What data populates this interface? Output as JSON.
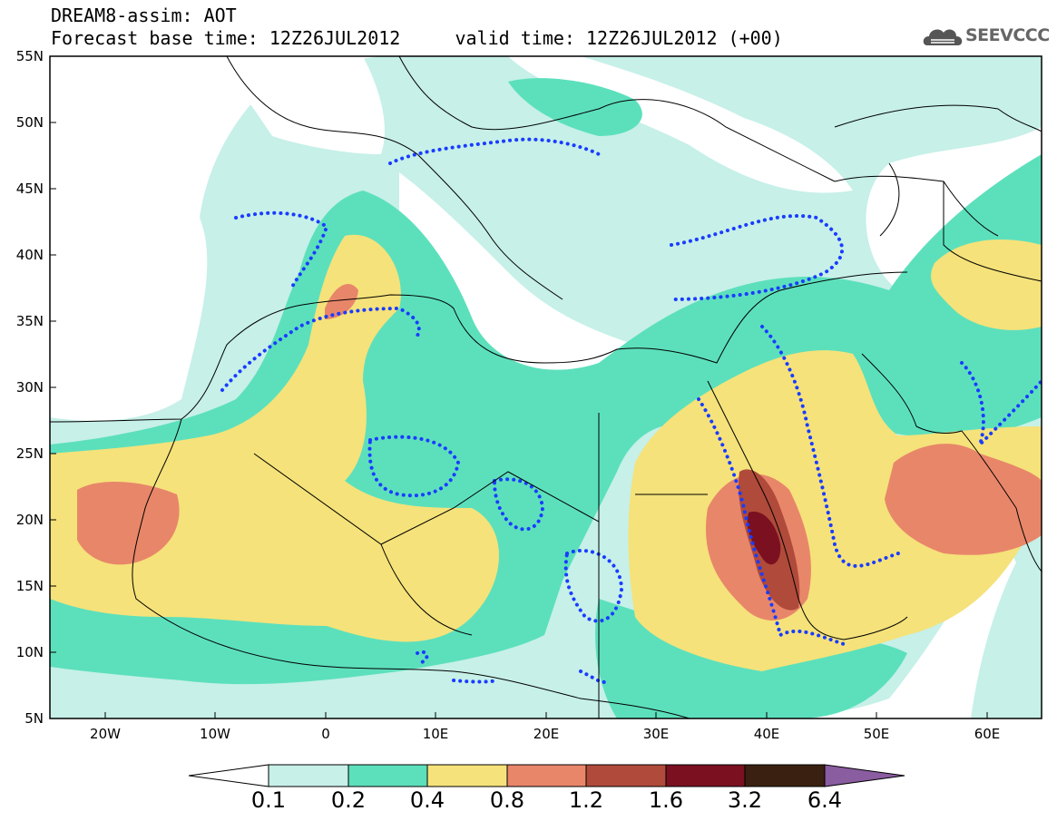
{
  "header": {
    "line1": "DREAM8-assim: AOT",
    "line2": "Forecast base time: 12Z26JUL2012     valid time: 12Z26JUL2012 (+00)",
    "logo_text": "SEEVCCC"
  },
  "map": {
    "lat_labels": [
      "55N",
      "50N",
      "45N",
      "40N",
      "35N",
      "30N",
      "25N",
      "20N",
      "15N",
      "10N",
      "5N"
    ],
    "lon_labels": [
      "20W",
      "10W",
      "0",
      "10E",
      "20E",
      "30E",
      "40E",
      "50E",
      "60E"
    ],
    "lon_range": [
      -25,
      65
    ],
    "lat_range": [
      5,
      55
    ],
    "contour_line_color": "#1a3cff",
    "background_color": "#ffffff"
  },
  "colorbar": {
    "labels": [
      "0.1",
      "0.2",
      "0.4",
      "0.8",
      "1.2",
      "1.6",
      "3.2",
      "6.4"
    ],
    "colors": [
      "#ffffff",
      "#c6f0e8",
      "#5ce0bc",
      "#f5e27a",
      "#e8866a",
      "#b04a3a",
      "#7a1020",
      "#3a2010",
      "#8a5ca0"
    ]
  }
}
